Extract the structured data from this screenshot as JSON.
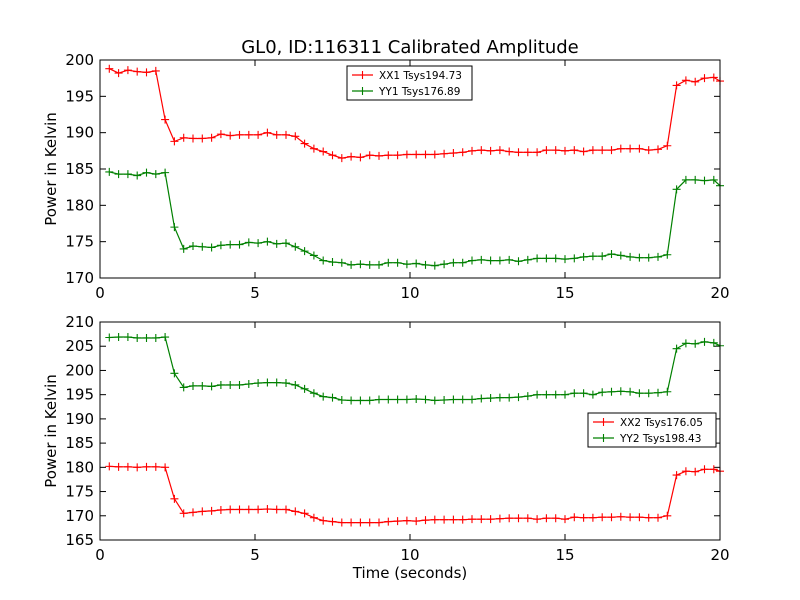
{
  "title": "GL0, ID:116311 Calibrated Amplitude",
  "chart_data": [
    {
      "type": "line",
      "title": "GL0, ID:116311 Calibrated Amplitude",
      "xlabel": "",
      "ylabel": "Power in Kelvin",
      "xlim": [
        0,
        20
      ],
      "ylim": [
        170,
        200
      ],
      "xticks": [
        "0",
        "5",
        "10",
        "15",
        "20"
      ],
      "yticks": [
        "170",
        "175",
        "180",
        "185",
        "190",
        "195",
        "200"
      ],
      "grid": false,
      "legend": "top-center",
      "x": [
        0.3,
        0.6,
        0.9,
        1.2,
        1.5,
        1.8,
        2.1,
        2.4,
        2.7,
        3.0,
        3.3,
        3.6,
        3.9,
        4.2,
        4.5,
        4.8,
        5.1,
        5.4,
        5.7,
        6.0,
        6.3,
        6.6,
        6.9,
        7.2,
        7.5,
        7.8,
        8.1,
        8.4,
        8.7,
        9.0,
        9.3,
        9.6,
        9.9,
        10.2,
        10.5,
        10.8,
        11.1,
        11.4,
        11.7,
        12.0,
        12.3,
        12.6,
        12.9,
        13.2,
        13.5,
        13.8,
        14.1,
        14.4,
        14.7,
        15.0,
        15.3,
        15.6,
        15.9,
        16.2,
        16.5,
        16.8,
        17.1,
        17.4,
        17.7,
        18.0,
        18.3,
        18.6,
        18.9,
        19.2,
        19.5,
        19.8,
        20.0
      ],
      "series": [
        {
          "name": "XX1 Tsys194.73",
          "color": "#ff0000",
          "values": [
            198.8,
            198.2,
            198.6,
            198.4,
            198.3,
            198.5,
            191.8,
            188.8,
            189.3,
            189.2,
            189.2,
            189.3,
            189.8,
            189.6,
            189.7,
            189.7,
            189.7,
            190.0,
            189.7,
            189.7,
            189.5,
            188.5,
            187.8,
            187.4,
            186.9,
            186.5,
            186.7,
            186.6,
            186.9,
            186.8,
            186.9,
            186.9,
            187.0,
            187.0,
            187.0,
            187.0,
            187.1,
            187.2,
            187.3,
            187.5,
            187.6,
            187.5,
            187.6,
            187.4,
            187.3,
            187.3,
            187.3,
            187.6,
            187.6,
            187.5,
            187.6,
            187.4,
            187.6,
            187.6,
            187.6,
            187.8,
            187.8,
            187.8,
            187.6,
            187.7,
            188.2,
            196.5,
            197.2,
            197.0,
            197.5,
            197.6,
            197.1
          ]
        },
        {
          "name": "YY1 Tsys176.89",
          "color": "#008000",
          "values": [
            184.6,
            184.3,
            184.3,
            184.1,
            184.5,
            184.3,
            184.5,
            177.0,
            174.0,
            174.4,
            174.3,
            174.2,
            174.5,
            174.6,
            174.6,
            174.9,
            174.8,
            175.0,
            174.7,
            174.8,
            174.3,
            173.7,
            173.1,
            172.4,
            172.2,
            172.1,
            171.8,
            171.9,
            171.8,
            171.8,
            172.1,
            172.1,
            171.9,
            172.0,
            171.8,
            171.7,
            171.9,
            172.1,
            172.1,
            172.4,
            172.5,
            172.4,
            172.4,
            172.5,
            172.3,
            172.5,
            172.7,
            172.7,
            172.7,
            172.6,
            172.7,
            172.9,
            173.0,
            173.0,
            173.3,
            173.1,
            172.9,
            172.8,
            172.8,
            172.9,
            173.2,
            182.2,
            183.5,
            183.5,
            183.4,
            183.5,
            182.7
          ]
        }
      ]
    },
    {
      "type": "line",
      "title": "",
      "xlabel": "Time (seconds)",
      "ylabel": "Power in Kelvin",
      "xlim": [
        0,
        20
      ],
      "ylim": [
        165,
        210
      ],
      "xticks": [
        "0",
        "5",
        "10",
        "15",
        "20"
      ],
      "yticks": [
        "165",
        "170",
        "175",
        "180",
        "185",
        "190",
        "195",
        "200",
        "205",
        "210"
      ],
      "grid": false,
      "legend": "center-right",
      "x": [
        0.3,
        0.6,
        0.9,
        1.2,
        1.5,
        1.8,
        2.1,
        2.4,
        2.7,
        3.0,
        3.3,
        3.6,
        3.9,
        4.2,
        4.5,
        4.8,
        5.1,
        5.4,
        5.7,
        6.0,
        6.3,
        6.6,
        6.9,
        7.2,
        7.5,
        7.8,
        8.1,
        8.4,
        8.7,
        9.0,
        9.3,
        9.6,
        9.9,
        10.2,
        10.5,
        10.8,
        11.1,
        11.4,
        11.7,
        12.0,
        12.3,
        12.6,
        12.9,
        13.2,
        13.5,
        13.8,
        14.1,
        14.4,
        14.7,
        15.0,
        15.3,
        15.6,
        15.9,
        16.2,
        16.5,
        16.8,
        17.1,
        17.4,
        17.7,
        18.0,
        18.3,
        18.6,
        18.9,
        19.2,
        19.5,
        19.8,
        20.0
      ],
      "series": [
        {
          "name": "XX2 Tsys176.05",
          "color": "#ff0000",
          "values": [
            180.2,
            180.1,
            180.1,
            180.0,
            180.1,
            180.1,
            180.0,
            173.5,
            170.5,
            170.7,
            170.9,
            171.0,
            171.2,
            171.3,
            171.3,
            171.3,
            171.3,
            171.4,
            171.3,
            171.3,
            170.9,
            170.5,
            169.6,
            169.0,
            168.8,
            168.6,
            168.6,
            168.6,
            168.6,
            168.6,
            168.8,
            168.9,
            169.0,
            168.9,
            169.1,
            169.2,
            169.2,
            169.2,
            169.2,
            169.3,
            169.3,
            169.3,
            169.4,
            169.5,
            169.5,
            169.5,
            169.3,
            169.5,
            169.5,
            169.3,
            169.7,
            169.6,
            169.6,
            169.7,
            169.7,
            169.8,
            169.7,
            169.7,
            169.6,
            169.6,
            170.0,
            178.4,
            179.2,
            179.1,
            179.6,
            179.6,
            179.2
          ]
        },
        {
          "name": "YY2 Tsys198.43",
          "color": "#008000",
          "values": [
            206.8,
            206.9,
            206.9,
            206.7,
            206.7,
            206.7,
            206.9,
            199.4,
            196.5,
            196.8,
            196.8,
            196.7,
            197.0,
            197.0,
            197.0,
            197.2,
            197.4,
            197.5,
            197.5,
            197.4,
            197.0,
            196.2,
            195.3,
            194.6,
            194.4,
            193.9,
            193.8,
            193.8,
            193.8,
            194.0,
            194.0,
            194.0,
            194.0,
            194.1,
            194.0,
            193.8,
            193.9,
            194.0,
            194.0,
            194.0,
            194.2,
            194.3,
            194.4,
            194.4,
            194.5,
            194.7,
            195.0,
            195.0,
            195.0,
            195.0,
            195.3,
            195.3,
            195.0,
            195.5,
            195.6,
            195.7,
            195.6,
            195.3,
            195.3,
            195.4,
            195.6,
            204.5,
            205.6,
            205.5,
            205.9,
            205.7,
            205.1
          ]
        }
      ]
    }
  ]
}
